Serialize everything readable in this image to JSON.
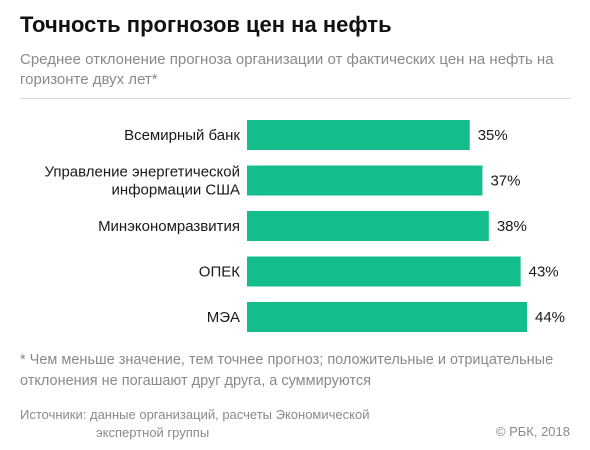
{
  "title": "Точность прогнозов цен на нефть",
  "subtitle": "Среднее отклонение прогноза организации от фактических цен на нефть на горизонте двух лет*",
  "footnote": "* Чем меньше значение, тем точнее прогноз; положительные и отрицательные отклонения не погашают друг друга, а суммируются",
  "sources": {
    "line1": "Источники: данные организаций, расчеты Экономической",
    "line2": "экспертной группы"
  },
  "copyright": "© РБК, 2018",
  "colors": {
    "bar": "#13be8c",
    "text": "#1a1a1a",
    "muted": "#8a8a8a"
  },
  "chart_data": {
    "type": "bar",
    "orientation": "horizontal",
    "categories": [
      [
        "Всемирный банк"
      ],
      [
        "Управление энергетической",
        "информации США"
      ],
      [
        "Минэкономразвития"
      ],
      [
        "ОПЕК"
      ],
      [
        "МЭА"
      ]
    ],
    "values": [
      35,
      37,
      38,
      43,
      44
    ],
    "value_labels": [
      "35%",
      "37%",
      "38%",
      "43%",
      "44%"
    ],
    "unit": "%",
    "xlim": [
      0,
      44
    ],
    "grid": false,
    "legend": "none"
  }
}
